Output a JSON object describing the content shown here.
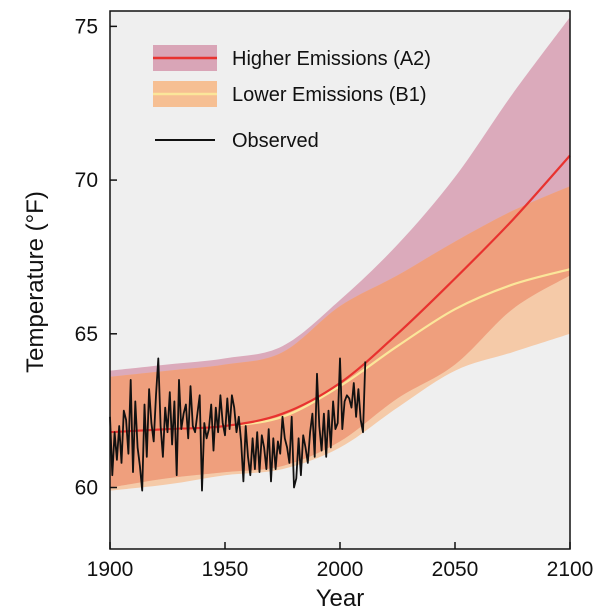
{
  "chart_data": {
    "type": "area",
    "xlabel": "Year",
    "ylabel": "Temperature (°F)",
    "xlim": [
      1900,
      2100
    ],
    "ylim": [
      58,
      75.5
    ],
    "xticks": [
      1900,
      1950,
      2000,
      2050,
      2100
    ],
    "yticks": [
      60,
      65,
      70,
      75
    ],
    "tick_labels_x": [
      "1900",
      "1950",
      "2000",
      "2050",
      "2100"
    ],
    "tick_labels_y": [
      "60",
      "65",
      "70",
      "75"
    ],
    "grid": false,
    "legend_position": "top-left",
    "legend": [
      {
        "label": "Higher Emissions (A2)",
        "kind": "band-line",
        "band_color": "#d9a5b7",
        "line_color": "#e8322f"
      },
      {
        "label": "Lower Emissions (B1)",
        "kind": "band-line",
        "band_color": "#f6bf93",
        "line_color": "#fbe69a"
      },
      {
        "label": "Observed",
        "kind": "line",
        "line_color": "#111111"
      }
    ],
    "series": [
      {
        "name": "Higher Emissions (A2)",
        "band_color": "#d9a5b7",
        "line_color": "#e8322f",
        "x": [
          1900,
          1925,
          1950,
          1975,
          2000,
          2025,
          2050,
          2075,
          2100
        ],
        "lower": [
          60.0,
          60.3,
          60.5,
          60.7,
          61.5,
          62.9,
          64.0,
          65.8,
          66.9
        ],
        "upper": [
          63.8,
          64.0,
          64.2,
          64.6,
          66.1,
          67.9,
          70.1,
          72.8,
          75.3
        ],
        "mean": [
          61.8,
          61.9,
          62.0,
          62.4,
          63.4,
          65.0,
          66.8,
          68.7,
          70.8
        ]
      },
      {
        "name": "Lower Emissions (B1)",
        "band_color": "#f6bf93",
        "line_color": "#fbe69a",
        "x": [
          1900,
          1925,
          1950,
          1975,
          2000,
          2025,
          2050,
          2075,
          2100
        ],
        "lower": [
          59.9,
          60.1,
          60.4,
          60.6,
          61.3,
          62.6,
          63.8,
          64.4,
          65.0
        ],
        "upper": [
          63.6,
          63.8,
          64.0,
          64.4,
          65.9,
          66.9,
          68.0,
          69.0,
          69.8
        ],
        "mean": [
          61.8,
          61.9,
          62.0,
          62.3,
          63.3,
          64.6,
          65.8,
          66.6,
          67.1
        ]
      },
      {
        "name": "Observed",
        "line_color": "#111111",
        "x": [
          1900,
          1901,
          1902,
          1903,
          1904,
          1905,
          1906,
          1907,
          1908,
          1909,
          1910,
          1911,
          1912,
          1913,
          1914,
          1915,
          1916,
          1917,
          1918,
          1919,
          1920,
          1921,
          1922,
          1923,
          1924,
          1925,
          1926,
          1927,
          1928,
          1929,
          1930,
          1931,
          1932,
          1933,
          1934,
          1935,
          1936,
          1937,
          1938,
          1939,
          1940,
          1941,
          1942,
          1943,
          1944,
          1945,
          1946,
          1947,
          1948,
          1949,
          1950,
          1951,
          1952,
          1953,
          1954,
          1955,
          1956,
          1957,
          1958,
          1959,
          1960,
          1961,
          1962,
          1963,
          1964,
          1965,
          1966,
          1967,
          1968,
          1969,
          1970,
          1971,
          1972,
          1973,
          1974,
          1975,
          1976,
          1977,
          1978,
          1979,
          1980,
          1981,
          1982,
          1983,
          1984,
          1985,
          1986,
          1987,
          1988,
          1989,
          1990,
          1991,
          1992,
          1993,
          1994,
          1995,
          1996,
          1997,
          1998,
          1999,
          2000,
          2001,
          2002,
          2003,
          2004,
          2005,
          2006,
          2007,
          2008,
          2009,
          2010,
          2011
        ],
        "values": [
          62.3,
          60.4,
          61.8,
          60.9,
          62.0,
          60.8,
          62.5,
          62.2,
          61.1,
          63.5,
          60.5,
          62.8,
          61.3,
          60.7,
          59.9,
          62.7,
          61.0,
          63.2,
          62.1,
          61.5,
          63.0,
          64.2,
          62.0,
          61.0,
          62.6,
          61.8,
          63.1,
          61.4,
          62.8,
          60.4,
          63.5,
          61.9,
          62.4,
          62.7,
          61.6,
          63.3,
          62.0,
          61.8,
          62.4,
          63.0,
          59.9,
          62.1,
          61.6,
          61.9,
          62.7,
          61.2,
          62.6,
          61.8,
          63.0,
          62.1,
          61.7,
          62.9,
          61.9,
          63.0,
          62.6,
          61.8,
          62.3,
          61.5,
          60.2,
          62.0,
          61.0,
          60.4,
          61.6,
          60.6,
          61.8,
          60.5,
          61.7,
          61.3,
          60.6,
          61.9,
          60.2,
          61.6,
          60.6,
          61.5,
          61.1,
          62.3,
          61.6,
          61.3,
          60.8,
          62.3,
          60.0,
          60.3,
          61.6,
          60.4,
          61.7,
          61.3,
          60.8,
          61.8,
          62.4,
          61.0,
          63.7,
          62.0,
          61.2,
          62.4,
          61.0,
          62.5,
          61.3,
          62.8,
          61.9,
          62.1,
          64.2,
          61.9,
          62.8,
          63.0,
          62.9,
          62.6,
          63.4,
          62.3,
          63.2,
          62.2,
          61.8,
          64.1
        ]
      }
    ]
  }
}
